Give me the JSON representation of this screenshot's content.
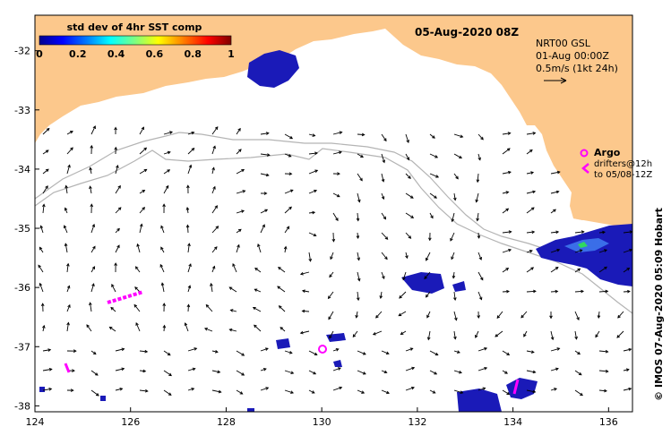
{
  "map": {
    "date_title": "05-Aug-2020 08Z",
    "credit": "© IMOS 07-Aug-2020 05:09 Hobart",
    "colorbar": {
      "title": "std dev of 4hr SST comp",
      "ticks": [
        "0",
        "0.2",
        "0.4",
        "0.6",
        "0.8",
        "1"
      ],
      "range": [
        0,
        1
      ],
      "colors": [
        "#00008f",
        "#0000ff",
        "#007fff",
        "#00ffff",
        "#7fff7f",
        "#ffff00",
        "#ff7f00",
        "#ff0000",
        "#7f0000"
      ]
    },
    "current_info": {
      "line1": "NRT00 GSL",
      "line2": "01-Aug 00:00Z",
      "line3": "0.5m/s (1kt 24h)"
    },
    "argo": {
      "label": "Argo",
      "line1": "drifters@12h",
      "line2": "to 05/08-12Z"
    },
    "axes": {
      "lon_range": [
        124,
        136.5
      ],
      "lat_range": [
        -38.1,
        -31.4
      ],
      "x_ticks": [
        "124",
        "126",
        "128",
        "130",
        "132",
        "134",
        "136"
      ],
      "y_ticks": [
        "-32",
        "-33",
        "-34",
        "-35",
        "-36",
        "-37",
        "-38"
      ]
    },
    "colors": {
      "land": "#fcc88c",
      "bathymetry": "#b4b4b4",
      "marker": "#ff00ff",
      "sst_dark": "#1a1ab8",
      "sst_mid": "#3a6ee8"
    },
    "icons": [
      "argo-float-icon",
      "current-arrow-icon"
    ]
  }
}
